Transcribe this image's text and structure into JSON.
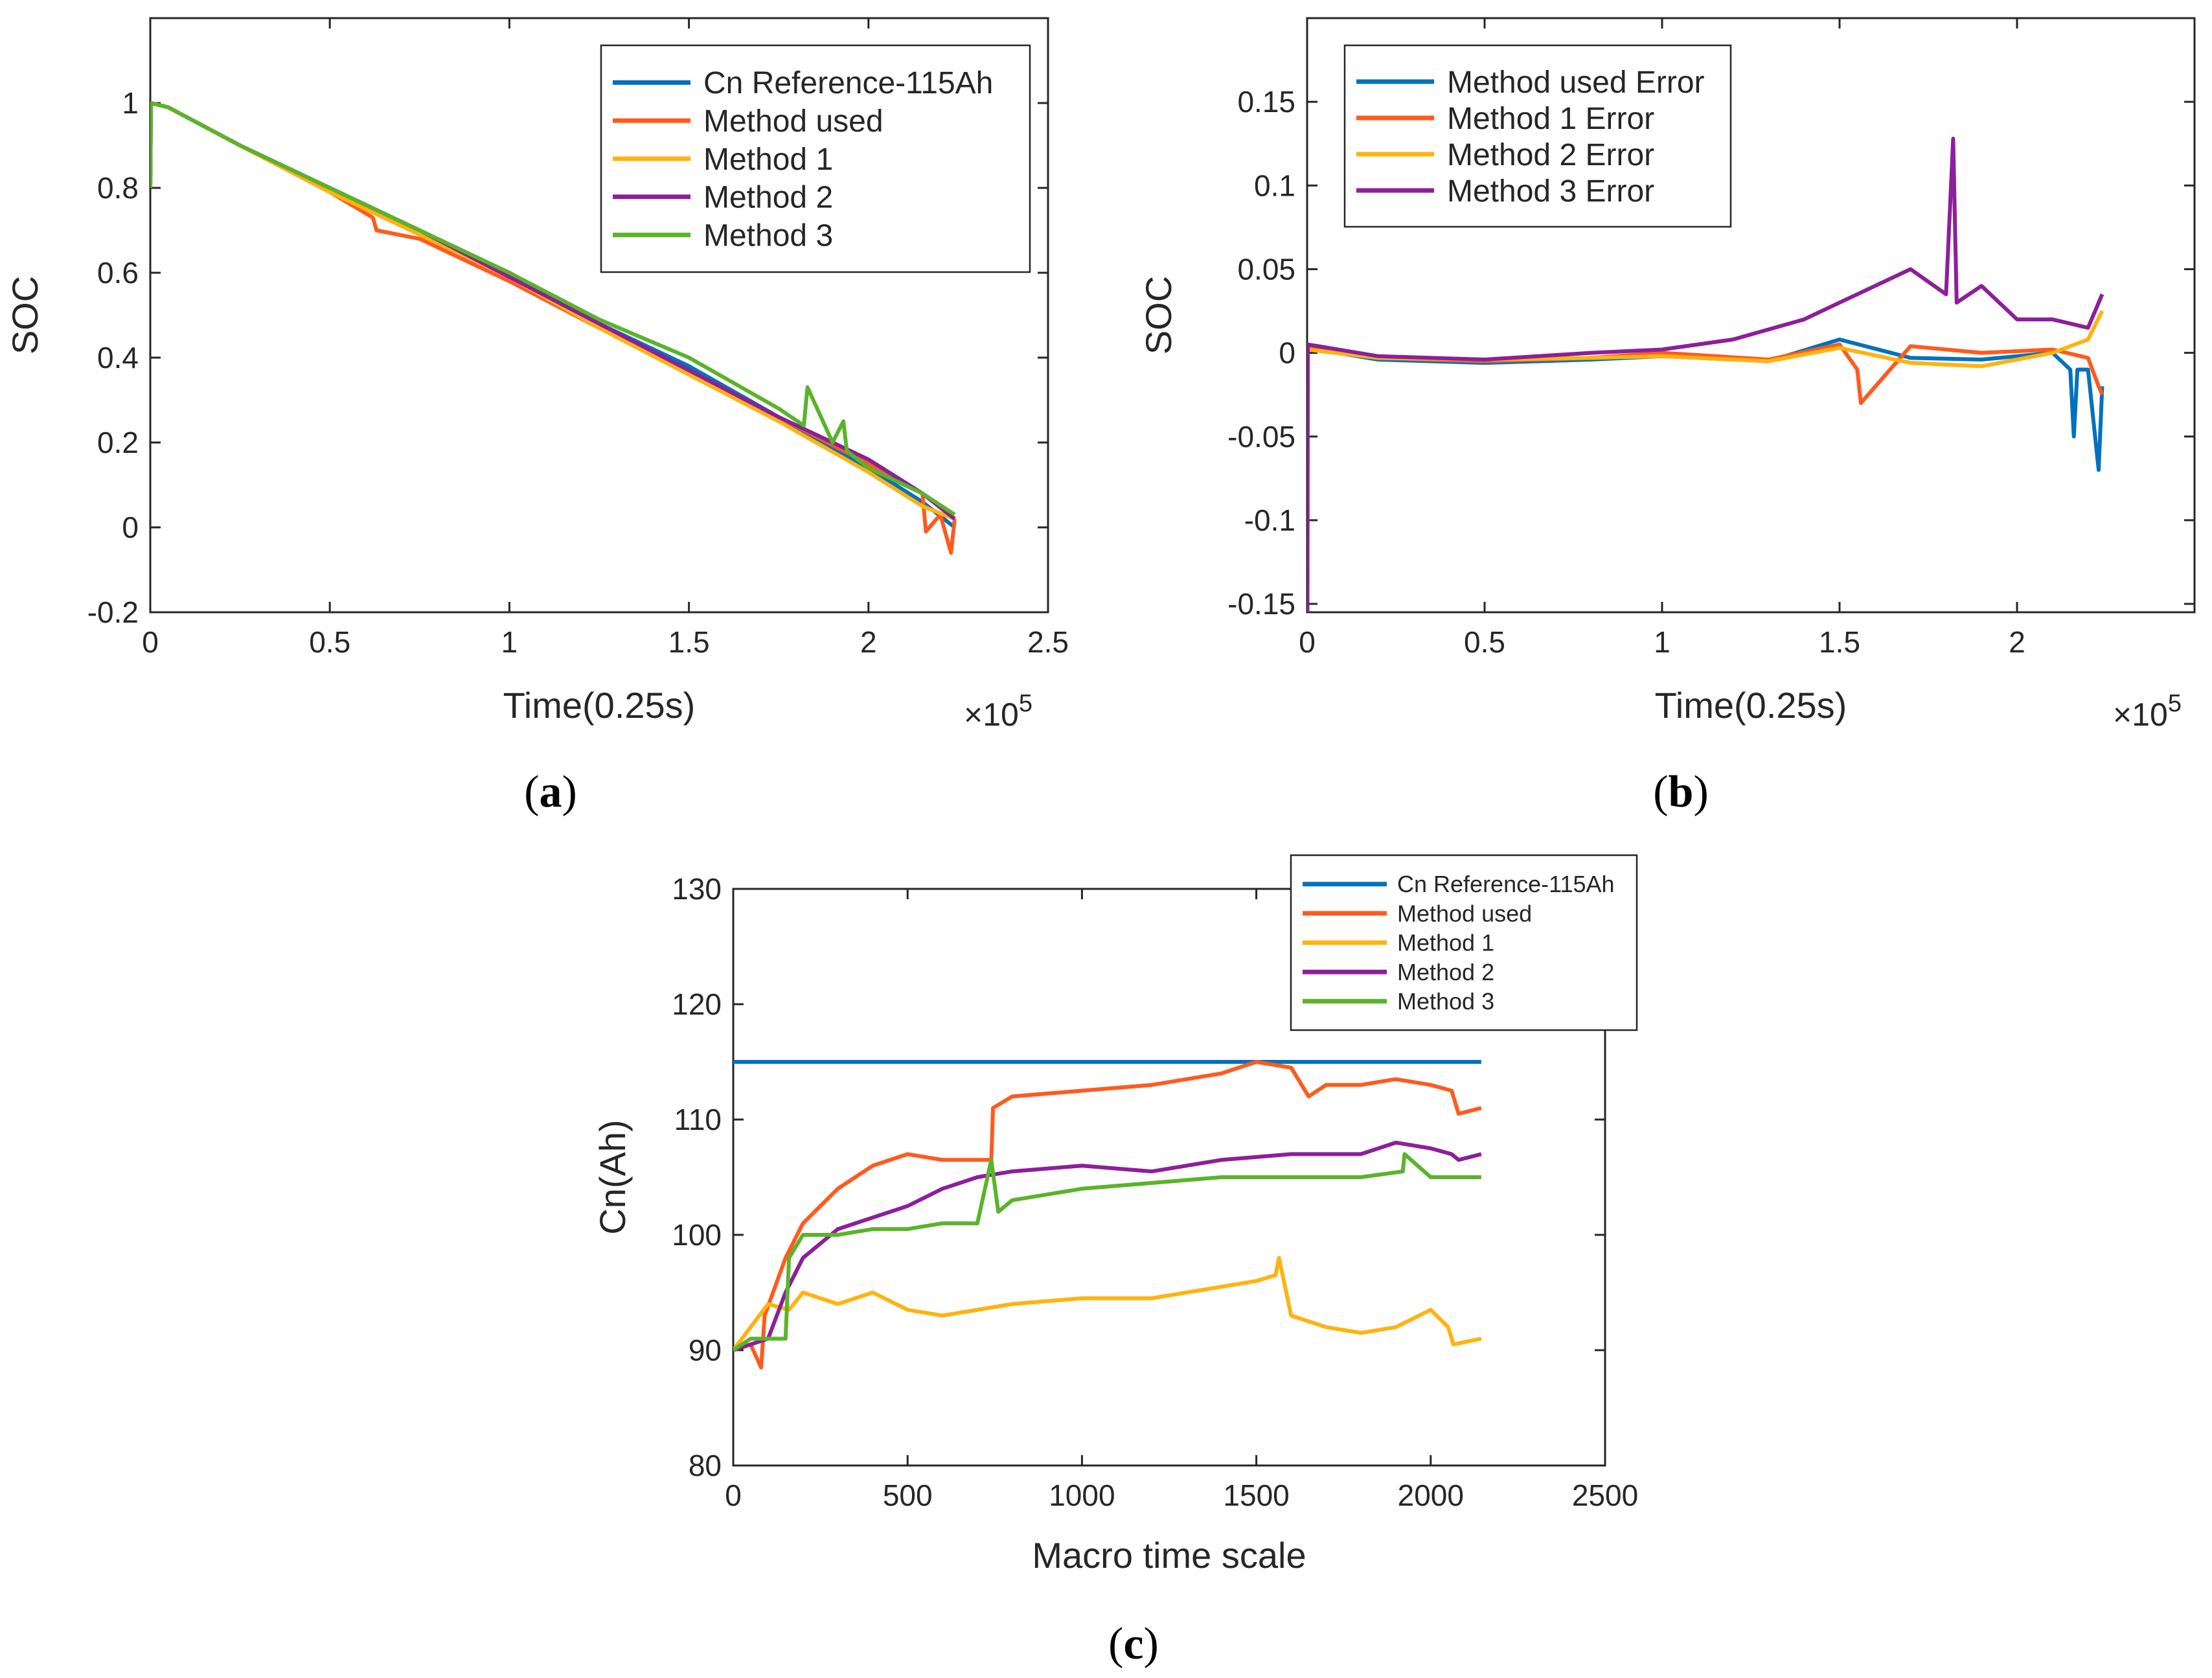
{
  "colors": {
    "blue": "#0072BD",
    "orange": "#FF5A1E",
    "yellow": "#FFB30F",
    "purple": "#8C1F9A",
    "green": "#5AB42A",
    "axis": "#262626"
  },
  "captions": {
    "a": "a",
    "b": "b",
    "c": "c"
  },
  "chart_data": [
    {
      "id": "a",
      "type": "line",
      "xlabel": "Time(0.25s)",
      "ylabel": "SOC",
      "exponent_label": "×10",
      "exponent_power": "5",
      "xlim": [
        0,
        2.5
      ],
      "ylim": [
        -0.2,
        1.2
      ],
      "xticks": [
        0,
        0.5,
        1,
        1.5,
        2,
        2.5
      ],
      "xtick_labels": [
        "0",
        "0.5",
        "1",
        "1.5",
        "2",
        "2.5"
      ],
      "yticks": [
        -0.2,
        0,
        0.2,
        0.4,
        0.6,
        0.8,
        1
      ],
      "ytick_labels": [
        "-0.2",
        "0",
        "0.2",
        "0.4",
        "0.6",
        "0.8",
        "1"
      ],
      "grid": false,
      "legend_position": "top-right",
      "series": [
        {
          "name": "Cn Reference-115Ah",
          "color": "blue",
          "x": [
            0,
            0.002,
            0.05,
            0.25,
            0.5,
            0.75,
            1.0,
            1.25,
            1.5,
            1.75,
            2.0,
            2.15,
            2.24
          ],
          "y": [
            0.8,
            1.0,
            0.99,
            0.9,
            0.8,
            0.7,
            0.6,
            0.48,
            0.38,
            0.26,
            0.14,
            0.06,
            0.0
          ]
        },
        {
          "name": "Method used",
          "color": "orange",
          "x": [
            0,
            0.002,
            0.05,
            0.25,
            0.5,
            0.62,
            0.63,
            0.75,
            1.0,
            1.25,
            1.5,
            1.75,
            2.0,
            2.15,
            2.16,
            2.2,
            2.23,
            2.24
          ],
          "y": [
            0.8,
            1.0,
            0.99,
            0.9,
            0.79,
            0.73,
            0.7,
            0.68,
            0.58,
            0.47,
            0.37,
            0.26,
            0.15,
            0.08,
            -0.01,
            0.03,
            -0.06,
            0.02
          ]
        },
        {
          "name": "Method 1",
          "color": "yellow",
          "x": [
            0,
            0.002,
            0.05,
            0.25,
            0.5,
            0.75,
            1.0,
            1.25,
            1.5,
            1.75,
            2.0,
            2.15,
            2.24
          ],
          "y": [
            0.8,
            1.0,
            0.99,
            0.9,
            0.79,
            0.69,
            0.59,
            0.47,
            0.36,
            0.25,
            0.13,
            0.05,
            0.02
          ]
        },
        {
          "name": "Method 2",
          "color": "purple",
          "x": [
            0,
            0.002,
            0.05,
            0.25,
            0.5,
            0.75,
            1.0,
            1.25,
            1.5,
            1.75,
            2.0,
            2.15,
            2.24
          ],
          "y": [
            0.8,
            1.0,
            0.99,
            0.9,
            0.8,
            0.7,
            0.59,
            0.48,
            0.37,
            0.26,
            0.16,
            0.08,
            0.02
          ]
        },
        {
          "name": "Method 3",
          "color": "green",
          "x": [
            0,
            0.002,
            0.05,
            0.25,
            0.5,
            0.75,
            1.0,
            1.25,
            1.5,
            1.75,
            1.82,
            1.83,
            1.9,
            1.93,
            1.94,
            2.0,
            2.15,
            2.24
          ],
          "y": [
            0.8,
            1.0,
            0.99,
            0.9,
            0.8,
            0.7,
            0.6,
            0.49,
            0.4,
            0.28,
            0.24,
            0.33,
            0.2,
            0.25,
            0.18,
            0.14,
            0.08,
            0.03
          ]
        }
      ]
    },
    {
      "id": "b",
      "type": "line",
      "xlabel": "Time(0.25s)",
      "ylabel": "SOC",
      "exponent_label": "×10",
      "exponent_power": "5",
      "xlim": [
        0,
        2.5
      ],
      "ylim": [
        -0.155,
        0.2
      ],
      "xticks": [
        0,
        0.5,
        1,
        1.5,
        2
      ],
      "xtick_labels": [
        "0",
        "0.5",
        "1",
        "1.5",
        "2"
      ],
      "yticks": [
        -0.15,
        -0.1,
        -0.05,
        0,
        0.05,
        0.1,
        0.15
      ],
      "ytick_labels": [
        "-0.15",
        "-0.1",
        "-0.05",
        "0",
        "0.05",
        "0.1",
        "0.15"
      ],
      "grid": false,
      "legend_position": "top-left",
      "series": [
        {
          "name": "Method used Error",
          "color": "blue",
          "x": [
            0,
            0.2,
            0.5,
            0.8,
            1.0,
            1.3,
            1.5,
            1.7,
            1.9,
            2.1,
            2.15,
            2.16,
            2.17,
            2.2,
            2.23,
            2.24
          ],
          "y": [
            0.003,
            -0.004,
            -0.006,
            -0.004,
            -0.002,
            -0.005,
            0.008,
            -0.003,
            -0.004,
            0.0,
            -0.01,
            -0.05,
            -0.01,
            -0.01,
            -0.07,
            -0.02
          ]
        },
        {
          "name": "Method 1 Error",
          "color": "orange",
          "x": [
            0,
            0.2,
            0.5,
            0.8,
            1.0,
            1.3,
            1.5,
            1.55,
            1.56,
            1.7,
            1.9,
            2.1,
            2.2,
            2.23,
            2.24
          ],
          "y": [
            0.003,
            -0.003,
            -0.005,
            -0.003,
            0.0,
            -0.004,
            0.005,
            -0.01,
            -0.03,
            0.004,
            0.0,
            0.002,
            -0.003,
            -0.02,
            -0.025
          ]
        },
        {
          "name": "Method 2 Error",
          "color": "yellow",
          "x": [
            0,
            0.2,
            0.5,
            0.8,
            1.0,
            1.3,
            1.5,
            1.7,
            1.9,
            2.0,
            2.1,
            2.2,
            2.24
          ],
          "y": [
            0.002,
            -0.003,
            -0.004,
            -0.003,
            -0.002,
            -0.005,
            0.003,
            -0.006,
            -0.008,
            -0.004,
            0.0,
            0.008,
            0.025
          ]
        },
        {
          "name": "Method 3 Error",
          "color": "purple",
          "x": [
            0,
            0.001,
            0.002,
            0.2,
            0.5,
            0.8,
            1.0,
            1.2,
            1.4,
            1.5,
            1.6,
            1.7,
            1.8,
            1.82,
            1.83,
            1.9,
            2.0,
            2.1,
            2.2,
            2.24
          ],
          "y": [
            0.005,
            -0.155,
            0.005,
            -0.002,
            -0.004,
            0.0,
            0.002,
            0.008,
            0.02,
            0.03,
            0.04,
            0.05,
            0.035,
            0.128,
            0.03,
            0.04,
            0.02,
            0.02,
            0.015,
            0.035
          ]
        }
      ]
    },
    {
      "id": "c",
      "type": "line",
      "xlabel": "Macro time scale",
      "ylabel": "Cn(Ah)",
      "xlim": [
        0,
        2500
      ],
      "ylim": [
        80,
        130
      ],
      "xticks": [
        0,
        500,
        1000,
        1500,
        2000,
        2500
      ],
      "xtick_labels": [
        "0",
        "500",
        "1000",
        "1500",
        "2000",
        "2500"
      ],
      "yticks": [
        80,
        90,
        100,
        110,
        120,
        130
      ],
      "ytick_labels": [
        "80",
        "90",
        "100",
        "110",
        "120",
        "130"
      ],
      "grid": false,
      "legend_position": "top-right",
      "series": [
        {
          "name": "Cn Reference-115Ah",
          "color": "blue",
          "x": [
            0,
            2145
          ],
          "y": [
            115,
            115
          ]
        },
        {
          "name": "Method used",
          "color": "orange",
          "x": [
            0,
            50,
            80,
            90,
            150,
            200,
            300,
            400,
            500,
            600,
            740,
            745,
            800,
            1000,
            1200,
            1400,
            1500,
            1600,
            1650,
            1700,
            1800,
            1900,
            2000,
            2060,
            2080,
            2145
          ],
          "y": [
            90,
            90.5,
            88.5,
            93,
            98,
            101,
            104,
            106,
            107,
            106.5,
            106.5,
            111,
            112,
            112.5,
            113,
            114,
            115,
            114.5,
            112,
            113,
            113,
            113.5,
            113,
            112.5,
            110.5,
            111
          ]
        },
        {
          "name": "Method 1",
          "color": "yellow",
          "x": [
            0,
            50,
            100,
            160,
            200,
            300,
            400,
            500,
            600,
            800,
            1000,
            1200,
            1400,
            1500,
            1555,
            1565,
            1600,
            1700,
            1800,
            1900,
            2000,
            2050,
            2065,
            2145
          ],
          "y": [
            90,
            92,
            94,
            93.5,
            95,
            94,
            95,
            93.5,
            93,
            94,
            94.5,
            94.5,
            95.5,
            96,
            96.5,
            98,
            93,
            92,
            91.5,
            92,
            93.5,
            92,
            90.5,
            91
          ]
        },
        {
          "name": "Method 2",
          "color": "purple",
          "x": [
            0,
            50,
            100,
            150,
            200,
            300,
            400,
            500,
            600,
            700,
            800,
            1000,
            1200,
            1400,
            1600,
            1800,
            1900,
            2000,
            2060,
            2080,
            2145
          ],
          "y": [
            90,
            90.5,
            91,
            95,
            98,
            100.5,
            101.5,
            102.5,
            104,
            105,
            105.5,
            106,
            105.5,
            106.5,
            107,
            107,
            108,
            107.5,
            107,
            106.5,
            107
          ]
        },
        {
          "name": "Method 3",
          "color": "green",
          "x": [
            0,
            50,
            100,
            150,
            160,
            200,
            300,
            400,
            500,
            600,
            700,
            740,
            760,
            800,
            900,
            1000,
            1200,
            1400,
            1600,
            1800,
            1920,
            1925,
            2000,
            2145
          ],
          "y": [
            90,
            91,
            91,
            91,
            98,
            100,
            100,
            100.5,
            100.5,
            101,
            101,
            106.5,
            102,
            103,
            103.5,
            104,
            104.5,
            105,
            105,
            105,
            105.5,
            107,
            105,
            105
          ]
        }
      ]
    }
  ]
}
